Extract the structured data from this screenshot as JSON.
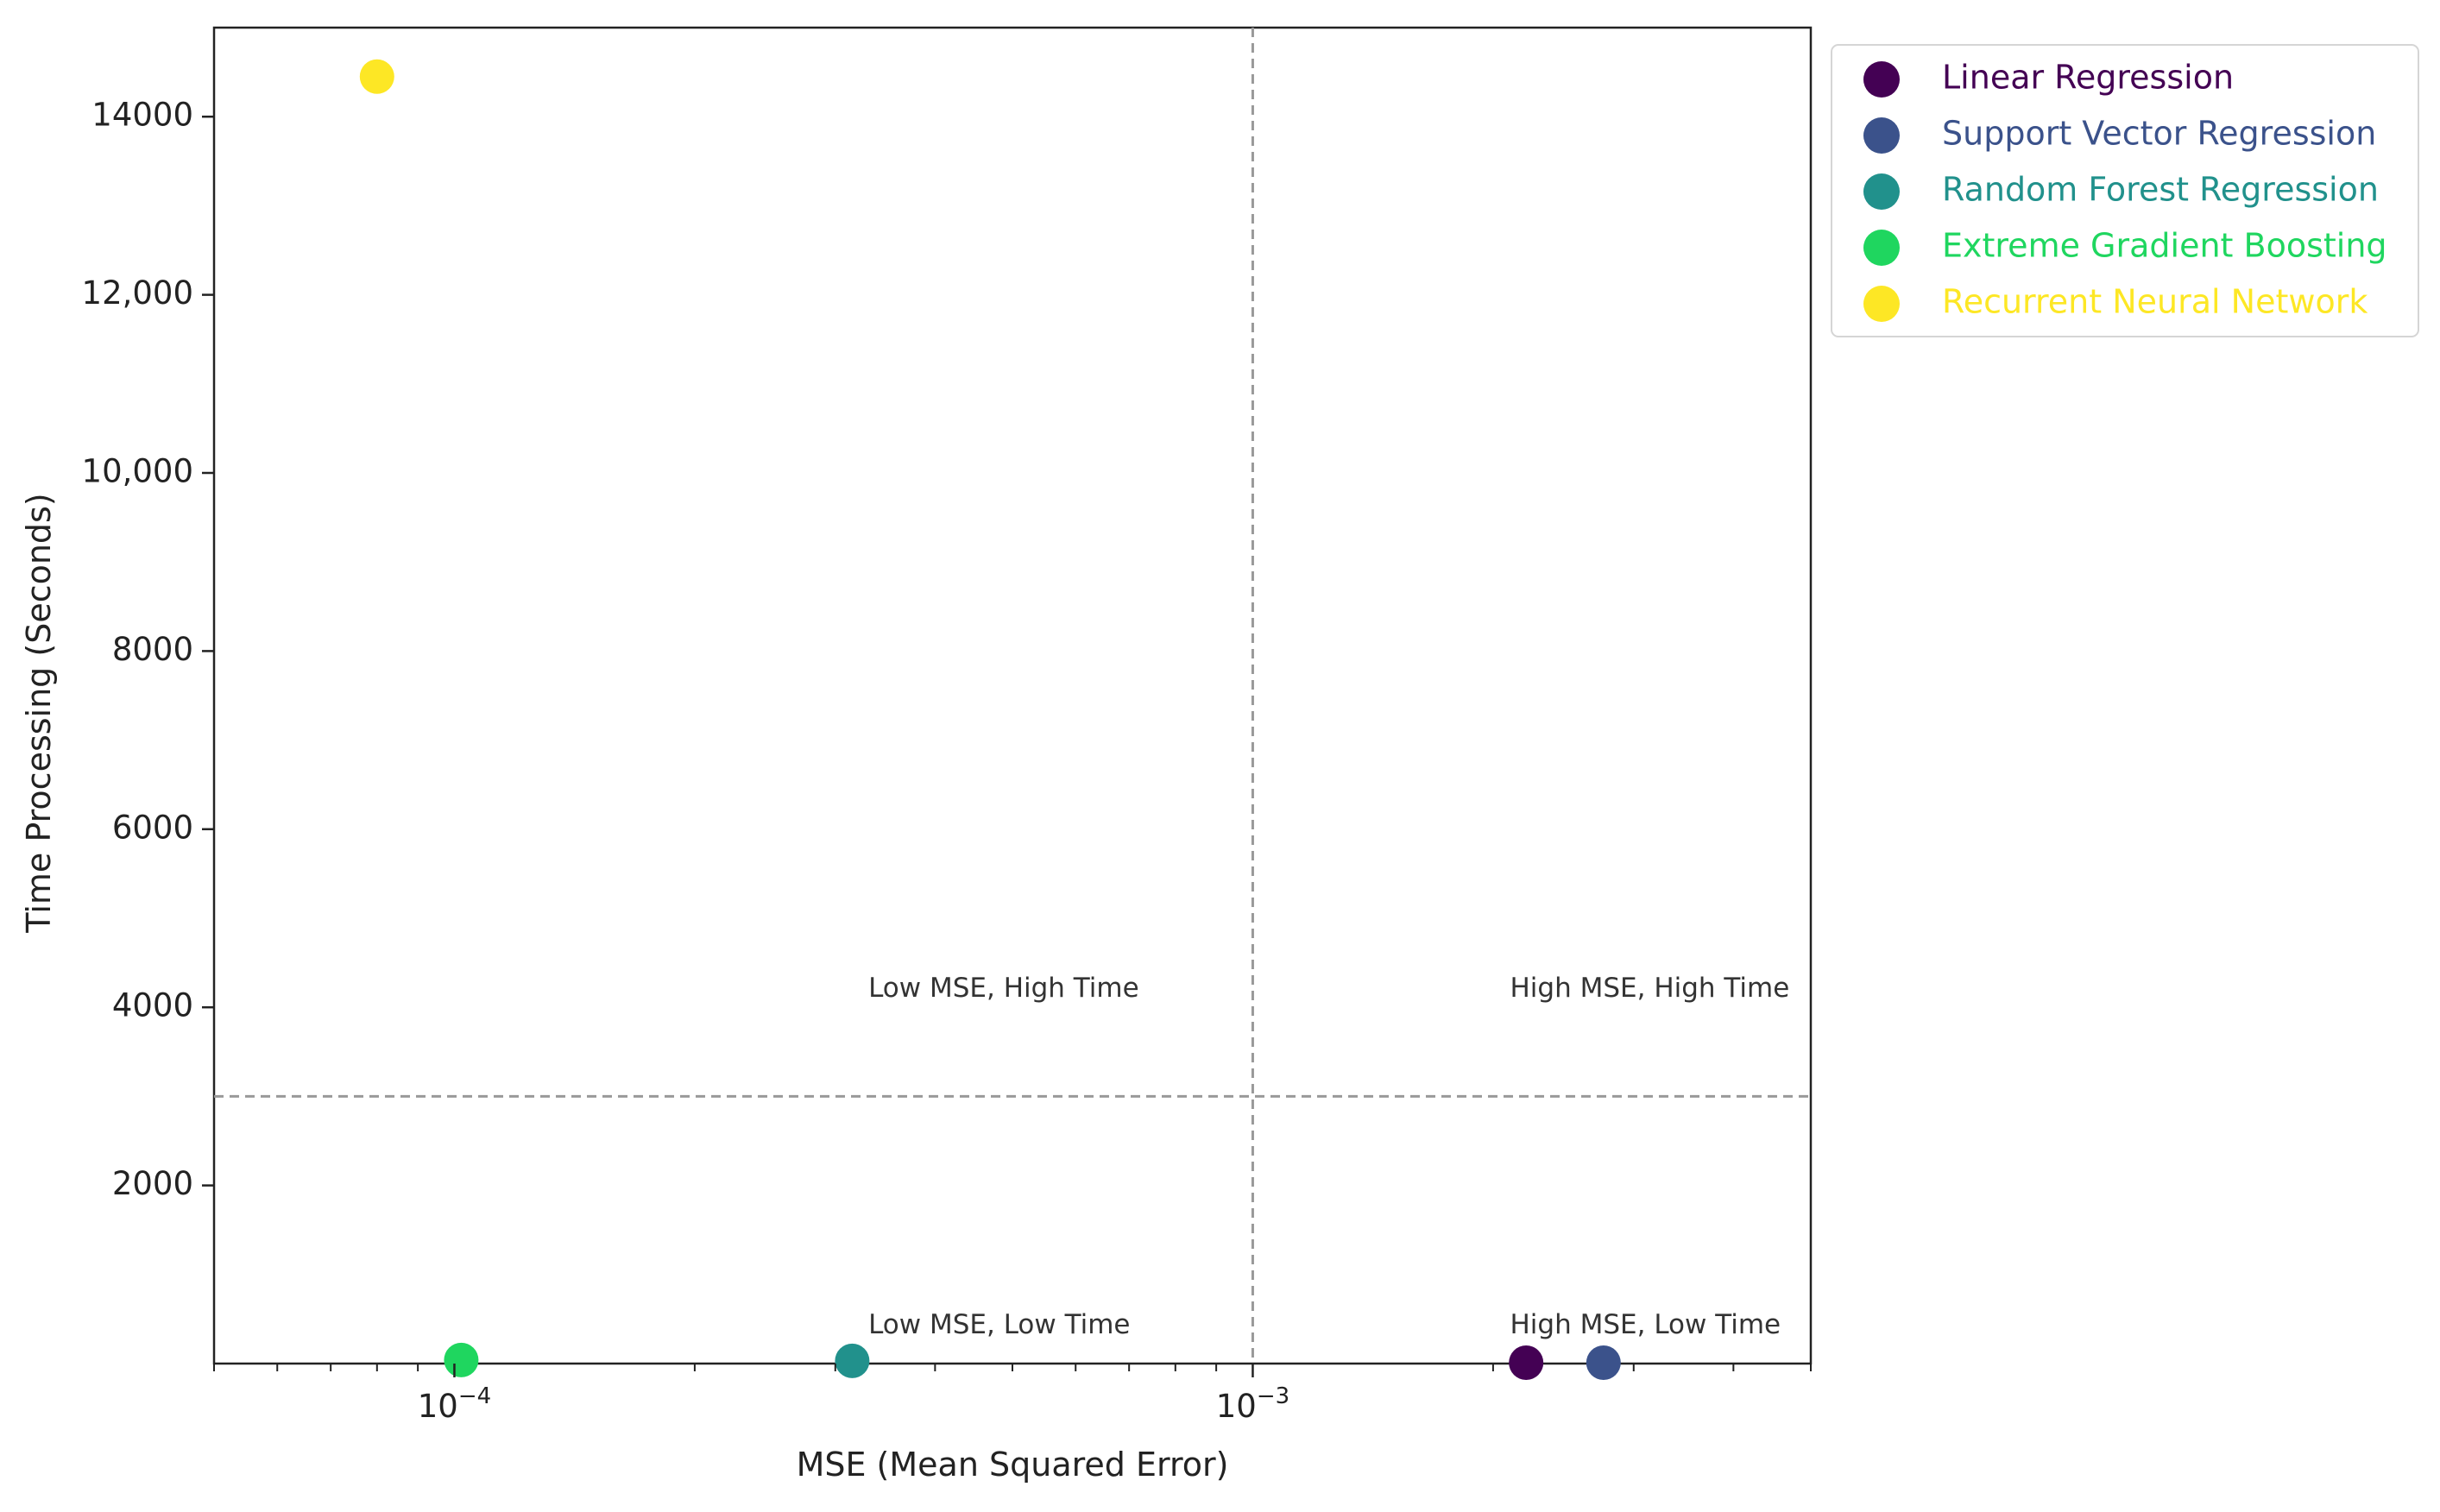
{
  "chart_data": {
    "type": "scatter",
    "title": "",
    "xlabel": "MSE (Mean Squared Error)",
    "ylabel": "Time Processing (Seconds)",
    "x_scale": "log",
    "xlim": [
      5e-05,
      0.005
    ],
    "ylim": [
      0,
      15000
    ],
    "x_major_ticks": [
      {
        "value": 0.0001,
        "base": "10",
        "exp": "−4"
      },
      {
        "value": 0.001,
        "base": "10",
        "exp": "−3"
      }
    ],
    "y_ticks": [
      {
        "value": 2000,
        "label": "2000"
      },
      {
        "value": 4000,
        "label": "4000"
      },
      {
        "value": 6000,
        "label": "6000"
      },
      {
        "value": 8000,
        "label": "8000"
      },
      {
        "value": 10000,
        "label": "10,000"
      },
      {
        "value": 12000,
        "label": "12,000"
      },
      {
        "value": 14000,
        "label": "14000"
      }
    ],
    "grid": false,
    "legend_position": "outside-top-right",
    "reference_lines": [
      {
        "axis": "x",
        "value": 0.001,
        "style": "dashed",
        "color": "#999999"
      },
      {
        "axis": "y",
        "value": 3000,
        "style": "dashed",
        "color": "#999999"
      }
    ],
    "annotations": [
      {
        "text": "Low MSE, High Time",
        "x": 0.00033,
        "y": 4200
      },
      {
        "text": "High MSE, High Time",
        "x": 0.0021,
        "y": 4200
      },
      {
        "text": "Low MSE, Low Time",
        "x": 0.00033,
        "y": 420
      },
      {
        "text": "High MSE, Low Time",
        "x": 0.0021,
        "y": 420
      }
    ],
    "series": [
      {
        "name": "Linear Regression",
        "color": "#440154",
        "x": 0.0022,
        "y": 10
      },
      {
        "name": "Support Vector Regression",
        "color": "#3b528b",
        "x": 0.00275,
        "y": 10
      },
      {
        "name": "Random Forest Regression",
        "color": "#21918c",
        "x": 0.000315,
        "y": 30
      },
      {
        "name": "Extreme Gradient Boosting",
        "color": "#1fd65f",
        "x": 0.000102,
        "y": 40
      },
      {
        "name": "Recurrent Neural Network",
        "color": "#fde725",
        "x": 8e-05,
        "y": 14450
      }
    ]
  }
}
